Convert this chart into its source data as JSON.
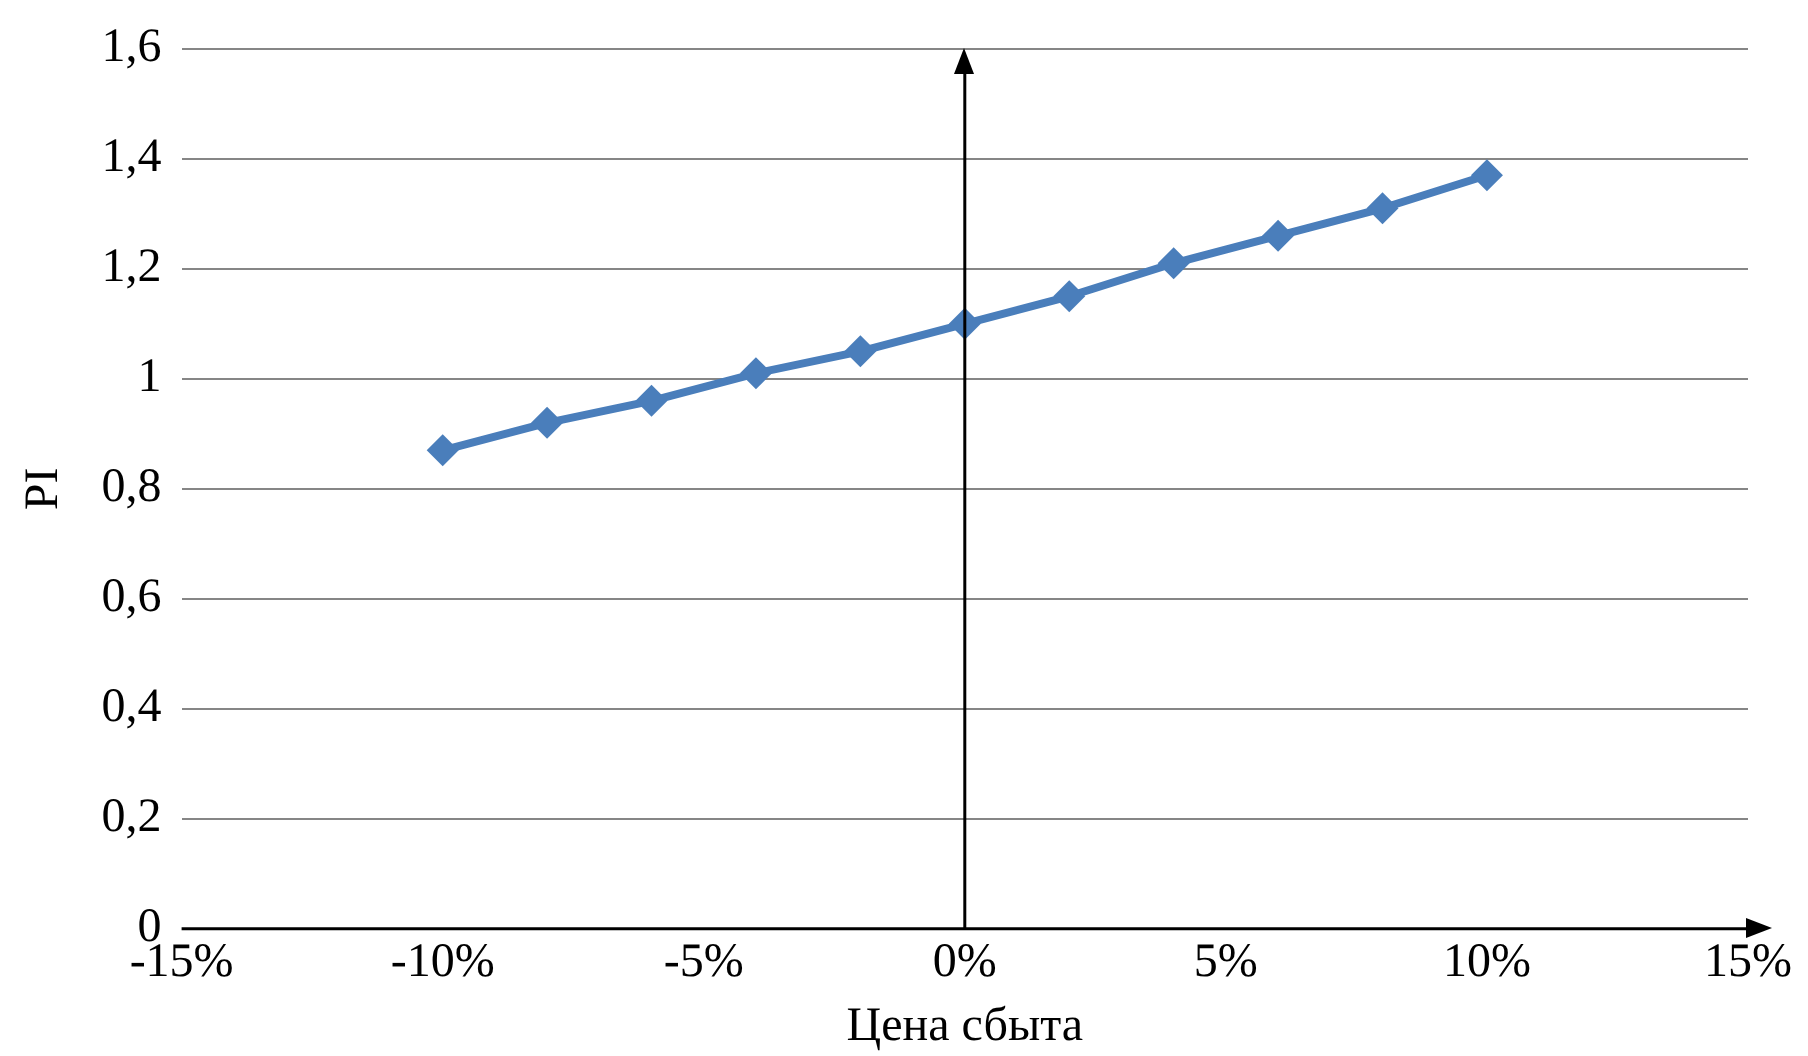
{
  "chart_data": {
    "type": "line",
    "xlabel": "Цена сбыта",
    "ylabel": "PI",
    "x": [
      -10,
      -8,
      -6,
      -4,
      -2,
      0,
      2,
      4,
      6,
      8,
      10
    ],
    "series": [
      {
        "color": "#4a7ebb",
        "values": [
          0.87,
          0.92,
          0.96,
          1.01,
          1.05,
          1.1,
          1.15,
          1.21,
          1.26,
          1.31,
          1.37
        ]
      }
    ],
    "xlim": [
      -15,
      15
    ],
    "xticks": [
      {
        "value": -15,
        "label": "-15%"
      },
      {
        "value": -10,
        "label": "-10%"
      },
      {
        "value": -5,
        "label": "-5%"
      },
      {
        "value": 0,
        "label": "0%"
      },
      {
        "value": 5,
        "label": "5%"
      },
      {
        "value": 10,
        "label": "10%"
      },
      {
        "value": 15,
        "label": "15%"
      }
    ],
    "ylim": [
      0,
      1.6
    ],
    "yticks": [
      0,
      {
        "value": 0.2,
        "label": "0,2"
      },
      {
        "value": 0.4,
        "label": "0,4"
      },
      {
        "value": 0.6,
        "label": "0,6"
      },
      {
        "value": 0.8,
        "label": "0,8"
      },
      1,
      {
        "value": 1.2,
        "label": "1,2"
      },
      {
        "value": 1.4,
        "label": "1,4"
      },
      {
        "value": 1.6,
        "label": "1,6"
      }
    ],
    "grid": "y",
    "legend": false,
    "marker": "diamond",
    "line_style": "solid"
  }
}
